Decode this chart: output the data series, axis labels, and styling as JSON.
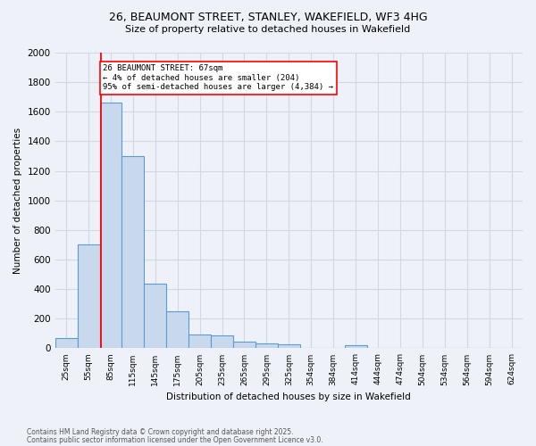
{
  "title_line1": "26, BEAUMONT STREET, STANLEY, WAKEFIELD, WF3 4HG",
  "title_line2": "Size of property relative to detached houses in Wakefield",
  "xlabel": "Distribution of detached houses by size in Wakefield",
  "ylabel": "Number of detached properties",
  "footnote1": "Contains HM Land Registry data © Crown copyright and database right 2025.",
  "footnote2": "Contains public sector information licensed under the Open Government Licence v3.0.",
  "bin_labels": [
    "25sqm",
    "55sqm",
    "85sqm",
    "115sqm",
    "145sqm",
    "175sqm",
    "205sqm",
    "235sqm",
    "265sqm",
    "295sqm",
    "325sqm",
    "354sqm",
    "384sqm",
    "414sqm",
    "444sqm",
    "474sqm",
    "504sqm",
    "534sqm",
    "564sqm",
    "594sqm",
    "624sqm"
  ],
  "bar_values": [
    70,
    700,
    1660,
    1300,
    440,
    250,
    95,
    85,
    45,
    30,
    25,
    0,
    0,
    20,
    0,
    0,
    0,
    0,
    0,
    0,
    0
  ],
  "bar_color": "#c8d9ee",
  "bar_edge_color": "#5b9bd5",
  "grid_color": "#d0d8e4",
  "annotation_text": "26 BEAUMONT STREET: 67sqm\n← 4% of detached houses are smaller (204)\n95% of semi-detached houses are larger (4,384) →",
  "annotation_box_color": "white",
  "annotation_box_edge": "red",
  "ylim": [
    0,
    2000
  ],
  "yticks": [
    0,
    200,
    400,
    600,
    800,
    1000,
    1200,
    1400,
    1600,
    1800,
    2000
  ],
  "background_color": "#eef2f8"
}
